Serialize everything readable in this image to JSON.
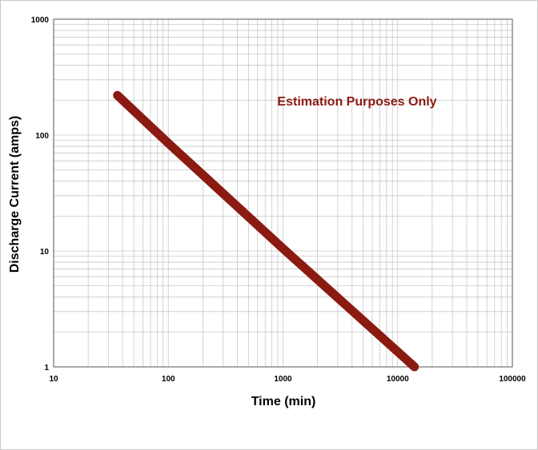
{
  "chart_data": {
    "type": "line",
    "xlabel": "Time (min)",
    "ylabel": "Discharge Current (amps)",
    "x_scale": "log",
    "y_scale": "log",
    "xlim": [
      10,
      100000
    ],
    "ylim": [
      1,
      1000
    ],
    "x_ticks": [
      "10",
      "100",
      "1000",
      "10000",
      "100000"
    ],
    "y_ticks": [
      "1",
      "10",
      "100",
      "1000"
    ],
    "grid": true,
    "annotation": "Estimation Purposes Only",
    "series": [
      {
        "x": [
          36,
          100,
          1000,
          10000,
          14000
        ],
        "y": [
          220,
          85,
          10.5,
          1.35,
          1.0
        ]
      }
    ],
    "colors": {
      "line": "#8b1a12",
      "annotation": "#8b1a12",
      "grid": "#c8c8c8",
      "axis": "#555555"
    }
  }
}
